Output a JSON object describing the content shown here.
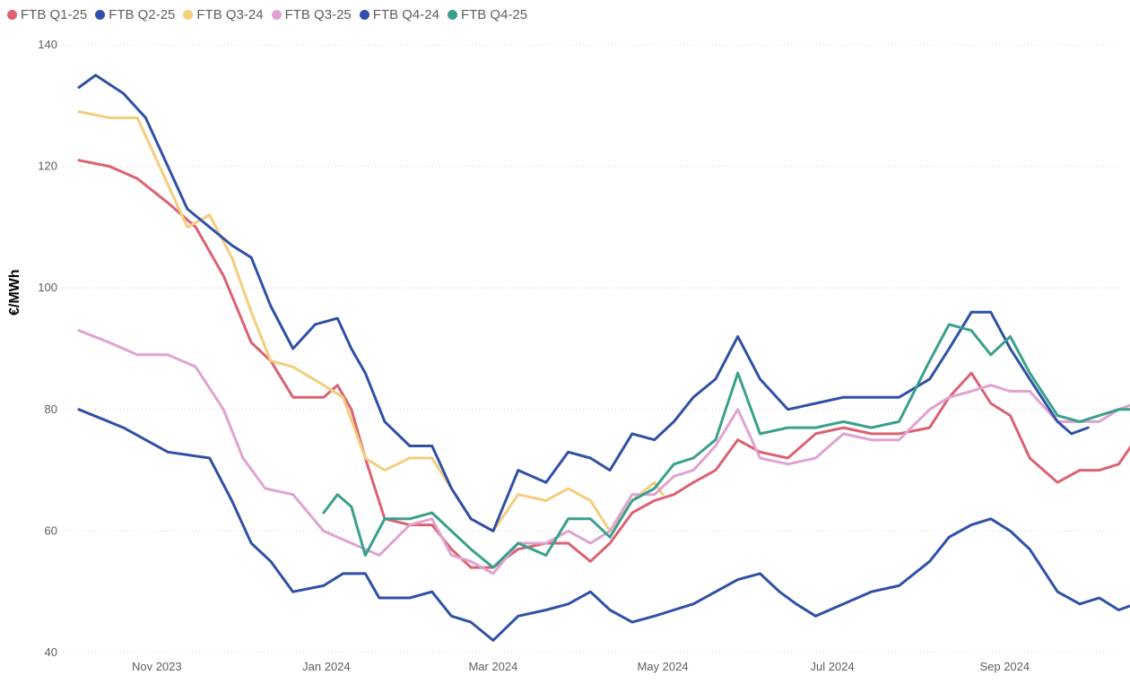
{
  "chart_data": {
    "type": "line",
    "title": "",
    "xlabel": "",
    "ylabel": "€/MWh",
    "ylim": [
      40,
      140
    ],
    "yticks": [
      40,
      60,
      80,
      100,
      120,
      140
    ],
    "ytick_labels": [
      "40",
      "60",
      "80",
      "100",
      "120",
      "140"
    ],
    "xlim": [
      "2023-10-04",
      "2024-10-18"
    ],
    "xticks": [
      "2023-11-01",
      "2024-01-01",
      "2024-03-01",
      "2024-05-01",
      "2024-07-01",
      "2024-09-01"
    ],
    "xtick_labels": [
      "Nov 2023",
      "Jan 2024",
      "Mar 2024",
      "May 2024",
      "Jul 2024",
      "Sep 2024"
    ],
    "grid": true,
    "legend_position": "top-left",
    "series": [
      {
        "name": "FTB Q1-25",
        "color": "#DA6272",
        "points": [
          [
            "2023-10-04",
            121
          ],
          [
            "2023-10-15",
            120
          ],
          [
            "2023-10-25",
            118
          ],
          [
            "2023-11-05",
            114
          ],
          [
            "2023-11-15",
            110
          ],
          [
            "2023-11-25",
            102
          ],
          [
            "2023-12-05",
            91
          ],
          [
            "2023-12-12",
            88
          ],
          [
            "2023-12-20",
            82
          ],
          [
            "2023-12-31",
            82
          ],
          [
            "2024-01-05",
            84
          ],
          [
            "2024-01-10",
            80
          ],
          [
            "2024-01-15",
            72
          ],
          [
            "2024-01-22",
            62
          ],
          [
            "2024-01-31",
            61
          ],
          [
            "2024-02-08",
            61
          ],
          [
            "2024-02-15",
            57
          ],
          [
            "2024-02-22",
            54
          ],
          [
            "2024-03-01",
            54
          ],
          [
            "2024-03-10",
            57
          ],
          [
            "2024-03-20",
            58
          ],
          [
            "2024-03-28",
            58
          ],
          [
            "2024-04-05",
            55
          ],
          [
            "2024-04-12",
            58
          ],
          [
            "2024-04-20",
            63
          ],
          [
            "2024-04-28",
            65
          ],
          [
            "2024-05-05",
            66
          ],
          [
            "2024-05-12",
            68
          ],
          [
            "2024-05-20",
            70
          ],
          [
            "2024-05-28",
            75
          ],
          [
            "2024-06-05",
            73
          ],
          [
            "2024-06-15",
            72
          ],
          [
            "2024-06-25",
            76
          ],
          [
            "2024-07-05",
            77
          ],
          [
            "2024-07-15",
            76
          ],
          [
            "2024-07-25",
            76
          ],
          [
            "2024-08-05",
            77
          ],
          [
            "2024-08-12",
            82
          ],
          [
            "2024-08-20",
            86
          ],
          [
            "2024-08-27",
            81
          ],
          [
            "2024-09-03",
            79
          ],
          [
            "2024-09-10",
            72
          ],
          [
            "2024-09-20",
            68
          ],
          [
            "2024-09-28",
            70
          ],
          [
            "2024-10-05",
            70
          ],
          [
            "2024-10-12",
            71
          ],
          [
            "2024-10-18",
            75
          ]
        ]
      },
      {
        "name": "FTB Q2-25",
        "color": "#2F50A5",
        "points": [
          [
            "2023-10-04",
            80
          ],
          [
            "2023-10-20",
            77
          ],
          [
            "2023-11-05",
            73
          ],
          [
            "2023-11-20",
            72
          ],
          [
            "2023-11-28",
            65
          ],
          [
            "2023-12-05",
            58
          ],
          [
            "2023-12-12",
            55
          ],
          [
            "2023-12-20",
            50
          ],
          [
            "2023-12-31",
            51
          ],
          [
            "2024-01-07",
            53
          ],
          [
            "2024-01-15",
            53
          ],
          [
            "2024-01-20",
            49
          ],
          [
            "2024-01-31",
            49
          ],
          [
            "2024-02-08",
            50
          ],
          [
            "2024-02-15",
            46
          ],
          [
            "2024-02-22",
            45
          ],
          [
            "2024-03-01",
            42
          ],
          [
            "2024-03-10",
            46
          ],
          [
            "2024-03-20",
            47
          ],
          [
            "2024-03-28",
            48
          ],
          [
            "2024-04-05",
            50
          ],
          [
            "2024-04-12",
            47
          ],
          [
            "2024-04-20",
            45
          ],
          [
            "2024-04-28",
            46
          ],
          [
            "2024-05-05",
            47
          ],
          [
            "2024-05-12",
            48
          ],
          [
            "2024-05-20",
            50
          ],
          [
            "2024-05-28",
            52
          ],
          [
            "2024-06-05",
            53
          ],
          [
            "2024-06-12",
            50
          ],
          [
            "2024-06-18",
            48
          ],
          [
            "2024-06-25",
            46
          ],
          [
            "2024-07-05",
            48
          ],
          [
            "2024-07-15",
            50
          ],
          [
            "2024-07-25",
            51
          ],
          [
            "2024-08-05",
            55
          ],
          [
            "2024-08-12",
            59
          ],
          [
            "2024-08-20",
            61
          ],
          [
            "2024-08-27",
            62
          ],
          [
            "2024-09-03",
            60
          ],
          [
            "2024-09-10",
            57
          ],
          [
            "2024-09-20",
            50
          ],
          [
            "2024-09-28",
            48
          ],
          [
            "2024-10-05",
            49
          ],
          [
            "2024-10-12",
            47
          ],
          [
            "2024-10-18",
            48
          ]
        ]
      },
      {
        "name": "FTB Q3-24",
        "color": "#F4CD7D",
        "points": [
          [
            "2023-10-04",
            129
          ],
          [
            "2023-10-15",
            128
          ],
          [
            "2023-10-25",
            128
          ],
          [
            "2023-11-05",
            117
          ],
          [
            "2023-11-12",
            110
          ],
          [
            "2023-11-20",
            112
          ],
          [
            "2023-11-28",
            105
          ],
          [
            "2023-12-05",
            96
          ],
          [
            "2023-12-12",
            88
          ],
          [
            "2023-12-20",
            87
          ],
          [
            "2023-12-31",
            84
          ],
          [
            "2024-01-07",
            82
          ],
          [
            "2024-01-15",
            72
          ],
          [
            "2024-01-22",
            70
          ],
          [
            "2024-01-31",
            72
          ],
          [
            "2024-02-08",
            72
          ],
          [
            "2024-02-15",
            67
          ],
          [
            "2024-02-22",
            62
          ],
          [
            "2024-03-01",
            60
          ],
          [
            "2024-03-10",
            66
          ],
          [
            "2024-03-20",
            65
          ],
          [
            "2024-03-28",
            67
          ],
          [
            "2024-04-05",
            65
          ],
          [
            "2024-04-12",
            60
          ],
          [
            "2024-04-20",
            65
          ],
          [
            "2024-04-28",
            68
          ],
          [
            "2024-05-01",
            66
          ]
        ]
      },
      {
        "name": "FTB Q3-25",
        "color": "#DFA3D2",
        "points": [
          [
            "2023-10-04",
            93
          ],
          [
            "2023-10-15",
            91
          ],
          [
            "2023-10-25",
            89
          ],
          [
            "2023-11-05",
            89
          ],
          [
            "2023-11-15",
            87
          ],
          [
            "2023-11-25",
            80
          ],
          [
            "2023-12-02",
            72
          ],
          [
            "2023-12-10",
            67
          ],
          [
            "2023-12-20",
            66
          ],
          [
            "2023-12-31",
            60
          ],
          [
            "2024-01-10",
            58
          ],
          [
            "2024-01-20",
            56
          ],
          [
            "2024-01-31",
            61
          ],
          [
            "2024-02-08",
            62
          ],
          [
            "2024-02-15",
            56
          ],
          [
            "2024-02-22",
            55
          ],
          [
            "2024-03-01",
            53
          ],
          [
            "2024-03-10",
            58
          ],
          [
            "2024-03-20",
            58
          ],
          [
            "2024-03-28",
            60
          ],
          [
            "2024-04-05",
            58
          ],
          [
            "2024-04-12",
            60
          ],
          [
            "2024-04-20",
            66
          ],
          [
            "2024-04-28",
            66
          ],
          [
            "2024-05-05",
            69
          ],
          [
            "2024-05-12",
            70
          ],
          [
            "2024-05-20",
            74
          ],
          [
            "2024-05-28",
            80
          ],
          [
            "2024-06-05",
            72
          ],
          [
            "2024-06-15",
            71
          ],
          [
            "2024-06-25",
            72
          ],
          [
            "2024-07-05",
            76
          ],
          [
            "2024-07-15",
            75
          ],
          [
            "2024-07-25",
            75
          ],
          [
            "2024-08-05",
            80
          ],
          [
            "2024-08-12",
            82
          ],
          [
            "2024-08-20",
            83
          ],
          [
            "2024-08-27",
            84
          ],
          [
            "2024-09-03",
            83
          ],
          [
            "2024-09-10",
            83
          ],
          [
            "2024-09-20",
            78
          ],
          [
            "2024-09-28",
            78
          ],
          [
            "2024-10-05",
            78
          ],
          [
            "2024-10-12",
            80
          ],
          [
            "2024-10-18",
            81
          ]
        ]
      },
      {
        "name": "FTB Q4-24",
        "color": "#2F50A5",
        "points": [
          [
            "2023-10-04",
            133
          ],
          [
            "2023-10-10",
            135
          ],
          [
            "2023-10-20",
            132
          ],
          [
            "2023-10-28",
            128
          ],
          [
            "2023-11-05",
            120
          ],
          [
            "2023-11-12",
            113
          ],
          [
            "2023-11-20",
            110
          ],
          [
            "2023-11-28",
            107
          ],
          [
            "2023-12-05",
            105
          ],
          [
            "2023-12-12",
            97
          ],
          [
            "2023-12-20",
            90
          ],
          [
            "2023-12-28",
            94
          ],
          [
            "2024-01-05",
            95
          ],
          [
            "2024-01-10",
            90
          ],
          [
            "2024-01-15",
            86
          ],
          [
            "2024-01-22",
            78
          ],
          [
            "2024-01-31",
            74
          ],
          [
            "2024-02-08",
            74
          ],
          [
            "2024-02-15",
            67
          ],
          [
            "2024-02-22",
            62
          ],
          [
            "2024-03-01",
            60
          ],
          [
            "2024-03-10",
            70
          ],
          [
            "2024-03-20",
            68
          ],
          [
            "2024-03-28",
            73
          ],
          [
            "2024-04-05",
            72
          ],
          [
            "2024-04-12",
            70
          ],
          [
            "2024-04-20",
            76
          ],
          [
            "2024-04-28",
            75
          ],
          [
            "2024-05-05",
            78
          ],
          [
            "2024-05-12",
            82
          ],
          [
            "2024-05-20",
            85
          ],
          [
            "2024-05-28",
            92
          ],
          [
            "2024-06-05",
            85
          ],
          [
            "2024-06-15",
            80
          ],
          [
            "2024-06-25",
            81
          ],
          [
            "2024-07-05",
            82
          ],
          [
            "2024-07-15",
            82
          ],
          [
            "2024-07-25",
            82
          ],
          [
            "2024-08-05",
            85
          ],
          [
            "2024-08-12",
            90
          ],
          [
            "2024-08-20",
            96
          ],
          [
            "2024-08-27",
            96
          ],
          [
            "2024-09-03",
            90
          ],
          [
            "2024-09-10",
            85
          ],
          [
            "2024-09-20",
            78
          ],
          [
            "2024-09-25",
            76
          ],
          [
            "2024-10-01",
            77
          ]
        ]
      },
      {
        "name": "FTB Q4-25",
        "color": "#3AA08B",
        "points": [
          [
            "2023-12-31",
            63
          ],
          [
            "2024-01-05",
            66
          ],
          [
            "2024-01-10",
            64
          ],
          [
            "2024-01-15",
            56
          ],
          [
            "2024-01-22",
            62
          ],
          [
            "2024-01-31",
            62
          ],
          [
            "2024-02-08",
            63
          ],
          [
            "2024-02-15",
            60
          ],
          [
            "2024-02-22",
            57
          ],
          [
            "2024-03-01",
            54
          ],
          [
            "2024-03-10",
            58
          ],
          [
            "2024-03-20",
            56
          ],
          [
            "2024-03-28",
            62
          ],
          [
            "2024-04-05",
            62
          ],
          [
            "2024-04-12",
            59
          ],
          [
            "2024-04-20",
            65
          ],
          [
            "2024-04-28",
            67
          ],
          [
            "2024-05-05",
            71
          ],
          [
            "2024-05-12",
            72
          ],
          [
            "2024-05-20",
            75
          ],
          [
            "2024-05-28",
            86
          ],
          [
            "2024-06-05",
            76
          ],
          [
            "2024-06-15",
            77
          ],
          [
            "2024-06-25",
            77
          ],
          [
            "2024-07-05",
            78
          ],
          [
            "2024-07-15",
            77
          ],
          [
            "2024-07-25",
            78
          ],
          [
            "2024-08-05",
            88
          ],
          [
            "2024-08-12",
            94
          ],
          [
            "2024-08-20",
            93
          ],
          [
            "2024-08-27",
            89
          ],
          [
            "2024-09-03",
            92
          ],
          [
            "2024-09-10",
            86
          ],
          [
            "2024-09-20",
            79
          ],
          [
            "2024-09-28",
            78
          ],
          [
            "2024-10-05",
            79
          ],
          [
            "2024-10-12",
            80
          ],
          [
            "2024-10-18",
            80
          ]
        ]
      }
    ]
  }
}
